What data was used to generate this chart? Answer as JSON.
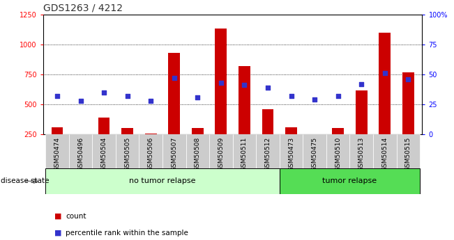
{
  "title": "GDS1263 / 4212",
  "categories": [
    "GSM50474",
    "GSM50496",
    "GSM50504",
    "GSM50505",
    "GSM50506",
    "GSM50507",
    "GSM50508",
    "GSM50509",
    "GSM50511",
    "GSM50512",
    "GSM50473",
    "GSM50475",
    "GSM50510",
    "GSM50513",
    "GSM50514",
    "GSM50515"
  ],
  "count_values": [
    310,
    248,
    390,
    305,
    258,
    930,
    305,
    1130,
    820,
    460,
    310,
    248,
    305,
    615,
    1100,
    770
  ],
  "percentile_values": [
    32,
    28,
    35,
    32,
    28,
    47,
    31,
    43,
    41,
    39,
    32,
    29,
    32,
    42,
    51,
    46
  ],
  "no_tumor_count": 10,
  "tumor_count": 6,
  "left_ylim": [
    250,
    1250
  ],
  "right_ylim": [
    0,
    100
  ],
  "left_yticks": [
    250,
    500,
    750,
    1000,
    1250
  ],
  "right_yticks": [
    0,
    25,
    50,
    75,
    100
  ],
  "right_yticklabels": [
    "0",
    "25",
    "50",
    "75",
    "100%"
  ],
  "bar_color": "#cc0000",
  "dot_color": "#3333cc",
  "no_tumor_bg": "#ccffcc",
  "tumor_bg": "#55dd55",
  "xtick_bg": "#cccccc",
  "grid_color": "#000000",
  "title_color": "#333333",
  "disease_state_label": "disease state",
  "no_tumor_label": "no tumor relapse",
  "tumor_label": "tumor relapse",
  "legend_count": "count",
  "legend_pct": "percentile rank within the sample"
}
